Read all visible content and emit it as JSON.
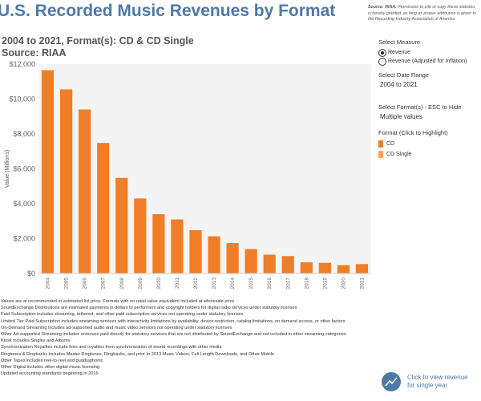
{
  "header": {
    "title": "U.S. Recorded Music Revenues by Format",
    "source_note_bold": "Source: RIAA.",
    "source_note_rest": " Permission to cite or copy these statistics is hereby granted, as long as proper attribution is given to the Recording Industry Association of America",
    "subtitle_line1": "2004 to 2021, Format(s): CD & CD Single",
    "subtitle_line2": "Source: RIAA"
  },
  "controls": {
    "measure": {
      "title": "Select Measure",
      "options": [
        "Revenue",
        "Revenue (Adjusted for Inflation)"
      ],
      "selected": "Revenue"
    },
    "date_range": {
      "title": "Select Date Range",
      "value": "2004 to 2021"
    },
    "formats": {
      "title": "Select Format(s) - ESC to Hide",
      "value": "Multiple values"
    },
    "legend": {
      "title": "Format (Click to Highlight)",
      "items": [
        {
          "label": "CD",
          "color": "#f07e26"
        },
        {
          "label": "CD Single",
          "color": "#f9a54a"
        }
      ]
    }
  },
  "chart_data": {
    "type": "bar",
    "ylabel": "Value (Millions)",
    "ylim": [
      0,
      12000
    ],
    "yticks": [
      "$0",
      "$2,000",
      "$4,000",
      "$6,000",
      "$8,000",
      "$10,000",
      "$12,000"
    ],
    "ytick_values": [
      0,
      2000,
      4000,
      6000,
      8000,
      10000,
      12000
    ],
    "categories": [
      "2004",
      "2005",
      "2006",
      "2007",
      "2008",
      "2009",
      "2010",
      "2011",
      "2012",
      "2013",
      "2014",
      "2015",
      "2016",
      "2017",
      "2018",
      "2019",
      "2020",
      "2021"
    ],
    "series": [
      {
        "name": "CD",
        "color": "#f07e26",
        "values": [
          11650,
          10550,
          9400,
          7480,
          5480,
          4300,
          3400,
          3100,
          2480,
          2130,
          1750,
          1400,
          1080,
          1000,
          640,
          610,
          480,
          540
        ]
      },
      {
        "name": "CD Single",
        "color": "#f9a54a",
        "values": [
          15,
          10,
          7,
          12,
          3,
          3,
          2,
          1,
          1,
          1,
          0,
          0,
          0,
          0,
          0,
          0,
          0,
          0
        ]
      }
    ],
    "grid": false,
    "background": "#f4f4f4"
  },
  "notes": [
    "Values are at recommended or estimated list price. Formats with no retail value equivalent included at wholesale price",
    "SoundExchange Distributions are estimated payments in dollars to performers and copyright holders for digital radio services under statutory licenses",
    "Paid Subscription includes streaming, tethered, and other paid subscription services not operating under statutory licenses",
    "Limited Tier Paid Subscription includes streaming services with interactivity limitations by availability, device restriction, catalog limitations, on demand access, or other factors",
    "On-Demand Streaming includes ad-supported audio and music video services not operating under statutory licenses",
    "Other Ad-supported Streaming includes revenues paid directly for statutory services that are not distributed by SoundExchange and not included in other streaming categories",
    "Kiosk includes Singles and Albums",
    "Synchronization Royalties include fees and royalties from synchronization of sound recordings with other media",
    "Ringtones & Ringbacks includes Master Ringtunes, Ringbacks, and prior to 2013 Music Videos, Full Length Downloads, and Other Mobile",
    "Other Tapes includes reel-to-reel and quadraphonic",
    "Other Digital includes other digital music licensing",
    "Updated accounting standards beginning in 2016"
  ],
  "cta": {
    "label": "Click to view revenue for single year",
    "icon": "chart-line-icon"
  }
}
